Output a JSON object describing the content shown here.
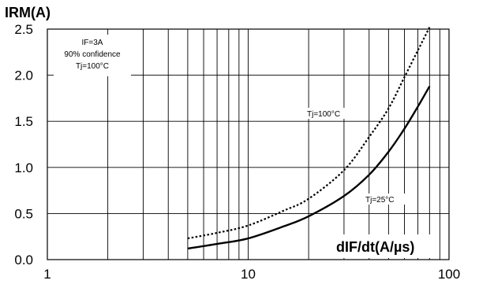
{
  "chart_data": {
    "type": "line",
    "title": "",
    "ylabel": "IRM(A)",
    "xlabel": "dIF/dt(A/µs)",
    "xscale": "log",
    "xlim": [
      1,
      100
    ],
    "ylim": [
      0,
      2.5
    ],
    "x_ticks": [
      "1",
      "10",
      "100"
    ],
    "y_ticks": [
      "0.0",
      "0.5",
      "1.0",
      "1.5",
      "2.0",
      "2.5"
    ],
    "grid": true,
    "annotations": [
      "IF=3A",
      "90% confidence",
      "Tj=100°C"
    ],
    "series": [
      {
        "name": "Tj=100°C",
        "style": "dotted",
        "color": "#000000",
        "x": [
          5,
          7,
          10,
          15,
          20,
          30,
          40,
          50,
          60,
          70,
          80
        ],
        "y": [
          0.23,
          0.29,
          0.37,
          0.53,
          0.66,
          0.97,
          1.33,
          1.64,
          1.98,
          2.27,
          2.52
        ]
      },
      {
        "name": "Tj=25°C",
        "style": "solid",
        "color": "#000000",
        "x": [
          5,
          7,
          10,
          15,
          20,
          30,
          40,
          50,
          60,
          70,
          80
        ],
        "y": [
          0.12,
          0.17,
          0.23,
          0.36,
          0.47,
          0.69,
          0.92,
          1.17,
          1.42,
          1.66,
          1.88
        ]
      }
    ]
  }
}
